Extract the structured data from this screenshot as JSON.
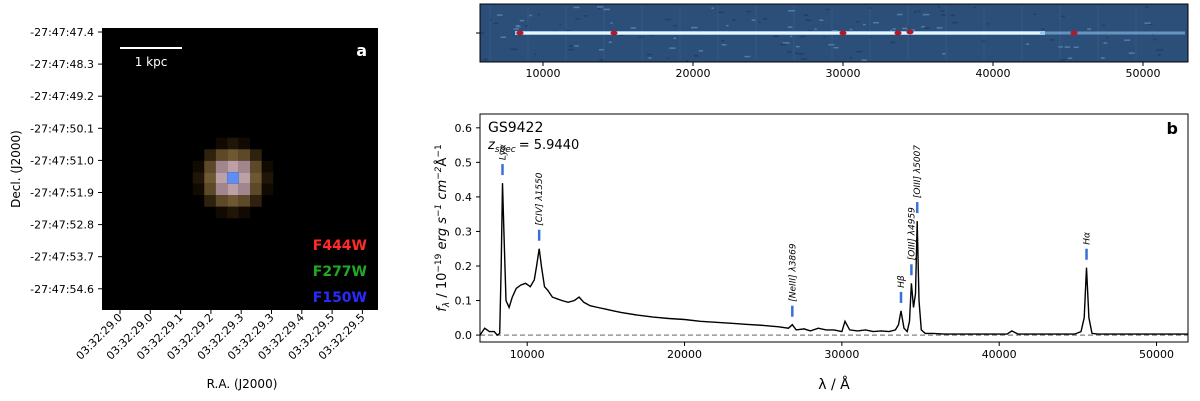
{
  "chart_data": [
    {
      "type": "image",
      "panel_label": "a",
      "scale_bar_label": "1 kpc",
      "xlabel": "R.A. (J2000)",
      "ylabel": "Decl. (J2000)",
      "x_ticks": [
        "03:32:29.0",
        "03:32:29.0",
        "03:32:29.1",
        "03:32:29.2",
        "03:32:29.3",
        "03:32:29.3",
        "03:32:29.4",
        "03:32:29.5",
        "03:32:29.5"
      ],
      "y_ticks": [
        "-27:47:47.4",
        "-27:47:48.3",
        "-27:47:49.2",
        "-27:47:50.1",
        "-27:47:51.0",
        "-27:47:51.9",
        "-27:47:52.8",
        "-27:47:53.7",
        "-27:47:54.6"
      ],
      "filters": [
        {
          "name": "F444W",
          "color": "#ff2a2a"
        },
        {
          "name": "F277W",
          "color": "#22a822"
        },
        {
          "name": "F150W",
          "color": "#2a2aff"
        }
      ]
    },
    {
      "type": "spectrum-2d",
      "x_ticks": [
        10000,
        20000,
        30000,
        40000,
        50000
      ],
      "xlim": [
        5800,
        53000
      ]
    },
    {
      "type": "line",
      "panel_label": "b",
      "object_name": "GS9422",
      "redshift_label": "z",
      "redshift_subscript": "spec",
      "redshift_value": "= 5.9440",
      "xlabel": "λ / Å",
      "ylabel": "f_λ / 10^-19 erg s^-1 cm^-2 Å^-1",
      "xlim": [
        7000,
        52000
      ],
      "ylim": [
        -0.02,
        0.64
      ],
      "x_ticks": [
        10000,
        20000,
        30000,
        40000,
        50000
      ],
      "y_ticks": [
        0.0,
        0.1,
        0.2,
        0.3,
        0.4,
        0.5,
        0.6
      ],
      "line_color": "#000000",
      "zero_line_color": "#808080",
      "marker_color": "#3a6fd8",
      "lines": [
        {
          "label": "Lyα",
          "x": 8430,
          "y": 0.44
        },
        {
          "label": "[CIV] λ1550",
          "x": 10760,
          "y": 0.25
        },
        {
          "label": "[NeIII] λ3869",
          "x": 26850,
          "y": 0.03
        },
        {
          "label": "Hβ",
          "x": 33760,
          "y": 0.07
        },
        {
          "label": "[OIII] λ4959",
          "x": 34420,
          "y": 0.15
        },
        {
          "label": "[OIII] λ5007",
          "x": 34790,
          "y": 0.33
        },
        {
          "label": "Hα",
          "x": 45550,
          "y": 0.195
        }
      ],
      "series": [
        {
          "x": [
            7000,
            7300,
            7600,
            7900,
            8100,
            8250,
            8350,
            8430,
            8520,
            8650,
            8850,
            9050,
            9300,
            9600,
            9900,
            10200,
            10450,
            10600,
            10760,
            10900,
            11100,
            11300,
            11600,
            11900,
            12200,
            12600,
            13000,
            13300,
            13600,
            14000,
            14500,
            15000,
            15500,
            16000,
            17000,
            18000,
            19000,
            20000,
            21000,
            22000,
            23000,
            24000,
            25000,
            26000,
            26600,
            26850,
            27100,
            27600,
            28000,
            28500,
            29000,
            29500,
            30000,
            30200,
            30500,
            31000,
            31500,
            32000,
            32500,
            33000,
            33400,
            33600,
            33760,
            33950,
            34150,
            34300,
            34420,
            34550,
            34680,
            34790,
            34900,
            35050,
            35300,
            35800,
            36500,
            37500,
            38500,
            39500,
            40500,
            40800,
            41200,
            42000,
            43000,
            44000,
            44800,
            45200,
            45400,
            45550,
            45700,
            45900,
            46300,
            47000,
            48000,
            49000,
            50000,
            51000,
            52000
          ],
          "y": [
            0.0,
            0.02,
            0.01,
            0.01,
            0.0,
            0.005,
            0.2,
            0.44,
            0.3,
            0.1,
            0.08,
            0.11,
            0.135,
            0.145,
            0.15,
            0.14,
            0.16,
            0.2,
            0.25,
            0.2,
            0.14,
            0.13,
            0.11,
            0.105,
            0.1,
            0.095,
            0.1,
            0.11,
            0.095,
            0.085,
            0.08,
            0.075,
            0.07,
            0.065,
            0.058,
            0.052,
            0.048,
            0.045,
            0.04,
            0.037,
            0.034,
            0.031,
            0.028,
            0.024,
            0.02,
            0.03,
            0.015,
            0.018,
            0.012,
            0.02,
            0.015,
            0.015,
            0.01,
            0.04,
            0.015,
            0.012,
            0.015,
            0.01,
            0.012,
            0.01,
            0.015,
            0.03,
            0.07,
            0.02,
            0.01,
            0.04,
            0.15,
            0.08,
            0.12,
            0.33,
            0.1,
            0.015,
            0.005,
            0.005,
            0.003,
            0.003,
            0.003,
            0.003,
            0.003,
            0.012,
            0.003,
            0.003,
            0.003,
            0.003,
            0.003,
            0.01,
            0.05,
            0.195,
            0.05,
            0.005,
            0.003,
            0.003,
            0.003,
            0.003,
            0.003,
            0.003,
            0.003
          ]
        }
      ]
    }
  ]
}
